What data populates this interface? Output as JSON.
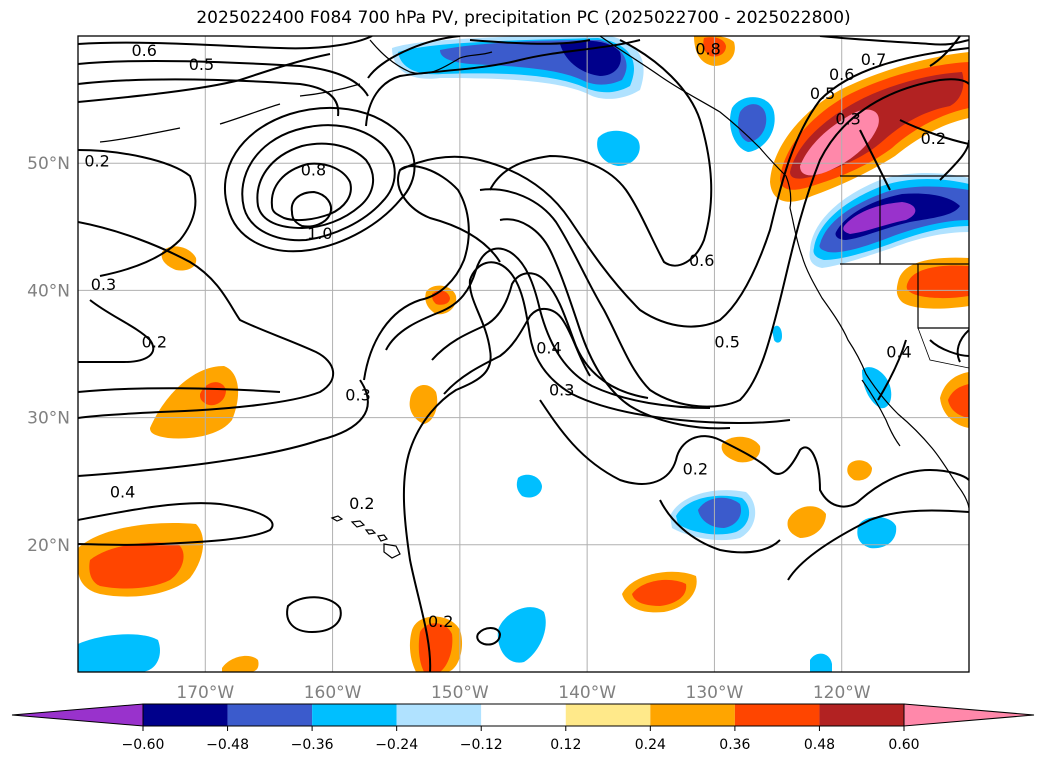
{
  "title": "2025022400 F084 700 hPa PV, precipitation PC (2025022700 - 2025022800)",
  "chart_data": {
    "type": "contour map",
    "fill_variable": "precipitation PC",
    "contour_variable": "700 hPa PV",
    "lon_range": [
      -180,
      -110
    ],
    "lat_range": [
      10,
      60
    ],
    "x_tick_labels": [
      "170°W",
      "160°W",
      "150°W",
      "140°W",
      "130°W",
      "120°W"
    ],
    "x_tick_values": [
      -170,
      -160,
      -150,
      -140,
      -130,
      -120
    ],
    "y_tick_labels": [
      "20°N",
      "30°N",
      "40°N",
      "50°N"
    ],
    "y_tick_values": [
      20,
      30,
      40,
      50
    ],
    "grid": true,
    "colorbar": {
      "ticks": [
        "−0.60",
        "−0.48",
        "−0.36",
        "−0.24",
        "−0.12",
        "0.12",
        "0.24",
        "0.36",
        "0.48",
        "0.60"
      ],
      "colors": [
        "#9932cc",
        "#00008b",
        "#3b5bcc",
        "#00bfff",
        "#b0e2ff",
        "#ffffff",
        "#ffe98a",
        "#ffa500",
        "#ff4500",
        "#b22222",
        "#ff88aa"
      ],
      "extend": "both"
    },
    "contour_labels": [
      {
        "text": "0.6",
        "lon": -174.8,
        "lat": 58.9
      },
      {
        "text": "0.5",
        "lon": -170.3,
        "lat": 57.8
      },
      {
        "text": "0.2",
        "lon": -178.5,
        "lat": 50.2
      },
      {
        "text": "0.8",
        "lon": -161.5,
        "lat": 49.5
      },
      {
        "text": "1.0",
        "lon": -161.0,
        "lat": 44.5
      },
      {
        "text": "0.3",
        "lon": -178.0,
        "lat": 40.5
      },
      {
        "text": "0.2",
        "lon": -174.0,
        "lat": 36.0
      },
      {
        "text": "0.3",
        "lon": -158.0,
        "lat": 31.8
      },
      {
        "text": "0.4",
        "lon": -176.5,
        "lat": 24.2
      },
      {
        "text": "0.2",
        "lon": -157.7,
        "lat": 23.3
      },
      {
        "text": "0.2",
        "lon": -151.5,
        "lat": 14.0
      },
      {
        "text": "0.4",
        "lon": -143.0,
        "lat": 35.5
      },
      {
        "text": "0.3",
        "lon": -142.0,
        "lat": 32.2
      },
      {
        "text": "0.8",
        "lon": -130.5,
        "lat": 59.0
      },
      {
        "text": "0.6",
        "lon": -131.0,
        "lat": 42.4
      },
      {
        "text": "0.5",
        "lon": -129.0,
        "lat": 36.0
      },
      {
        "text": "0.2",
        "lon": -131.5,
        "lat": 26.0
      },
      {
        "text": "0.7",
        "lon": -117.5,
        "lat": 58.2
      },
      {
        "text": "0.6",
        "lon": -120.0,
        "lat": 57.0
      },
      {
        "text": "0.5",
        "lon": -121.5,
        "lat": 55.5
      },
      {
        "text": "0.3",
        "lon": -119.5,
        "lat": 53.5
      },
      {
        "text": "0.2",
        "lon": -112.8,
        "lat": 52.0
      },
      {
        "text": "0.4",
        "lon": -115.5,
        "lat": 35.2
      }
    ]
  }
}
